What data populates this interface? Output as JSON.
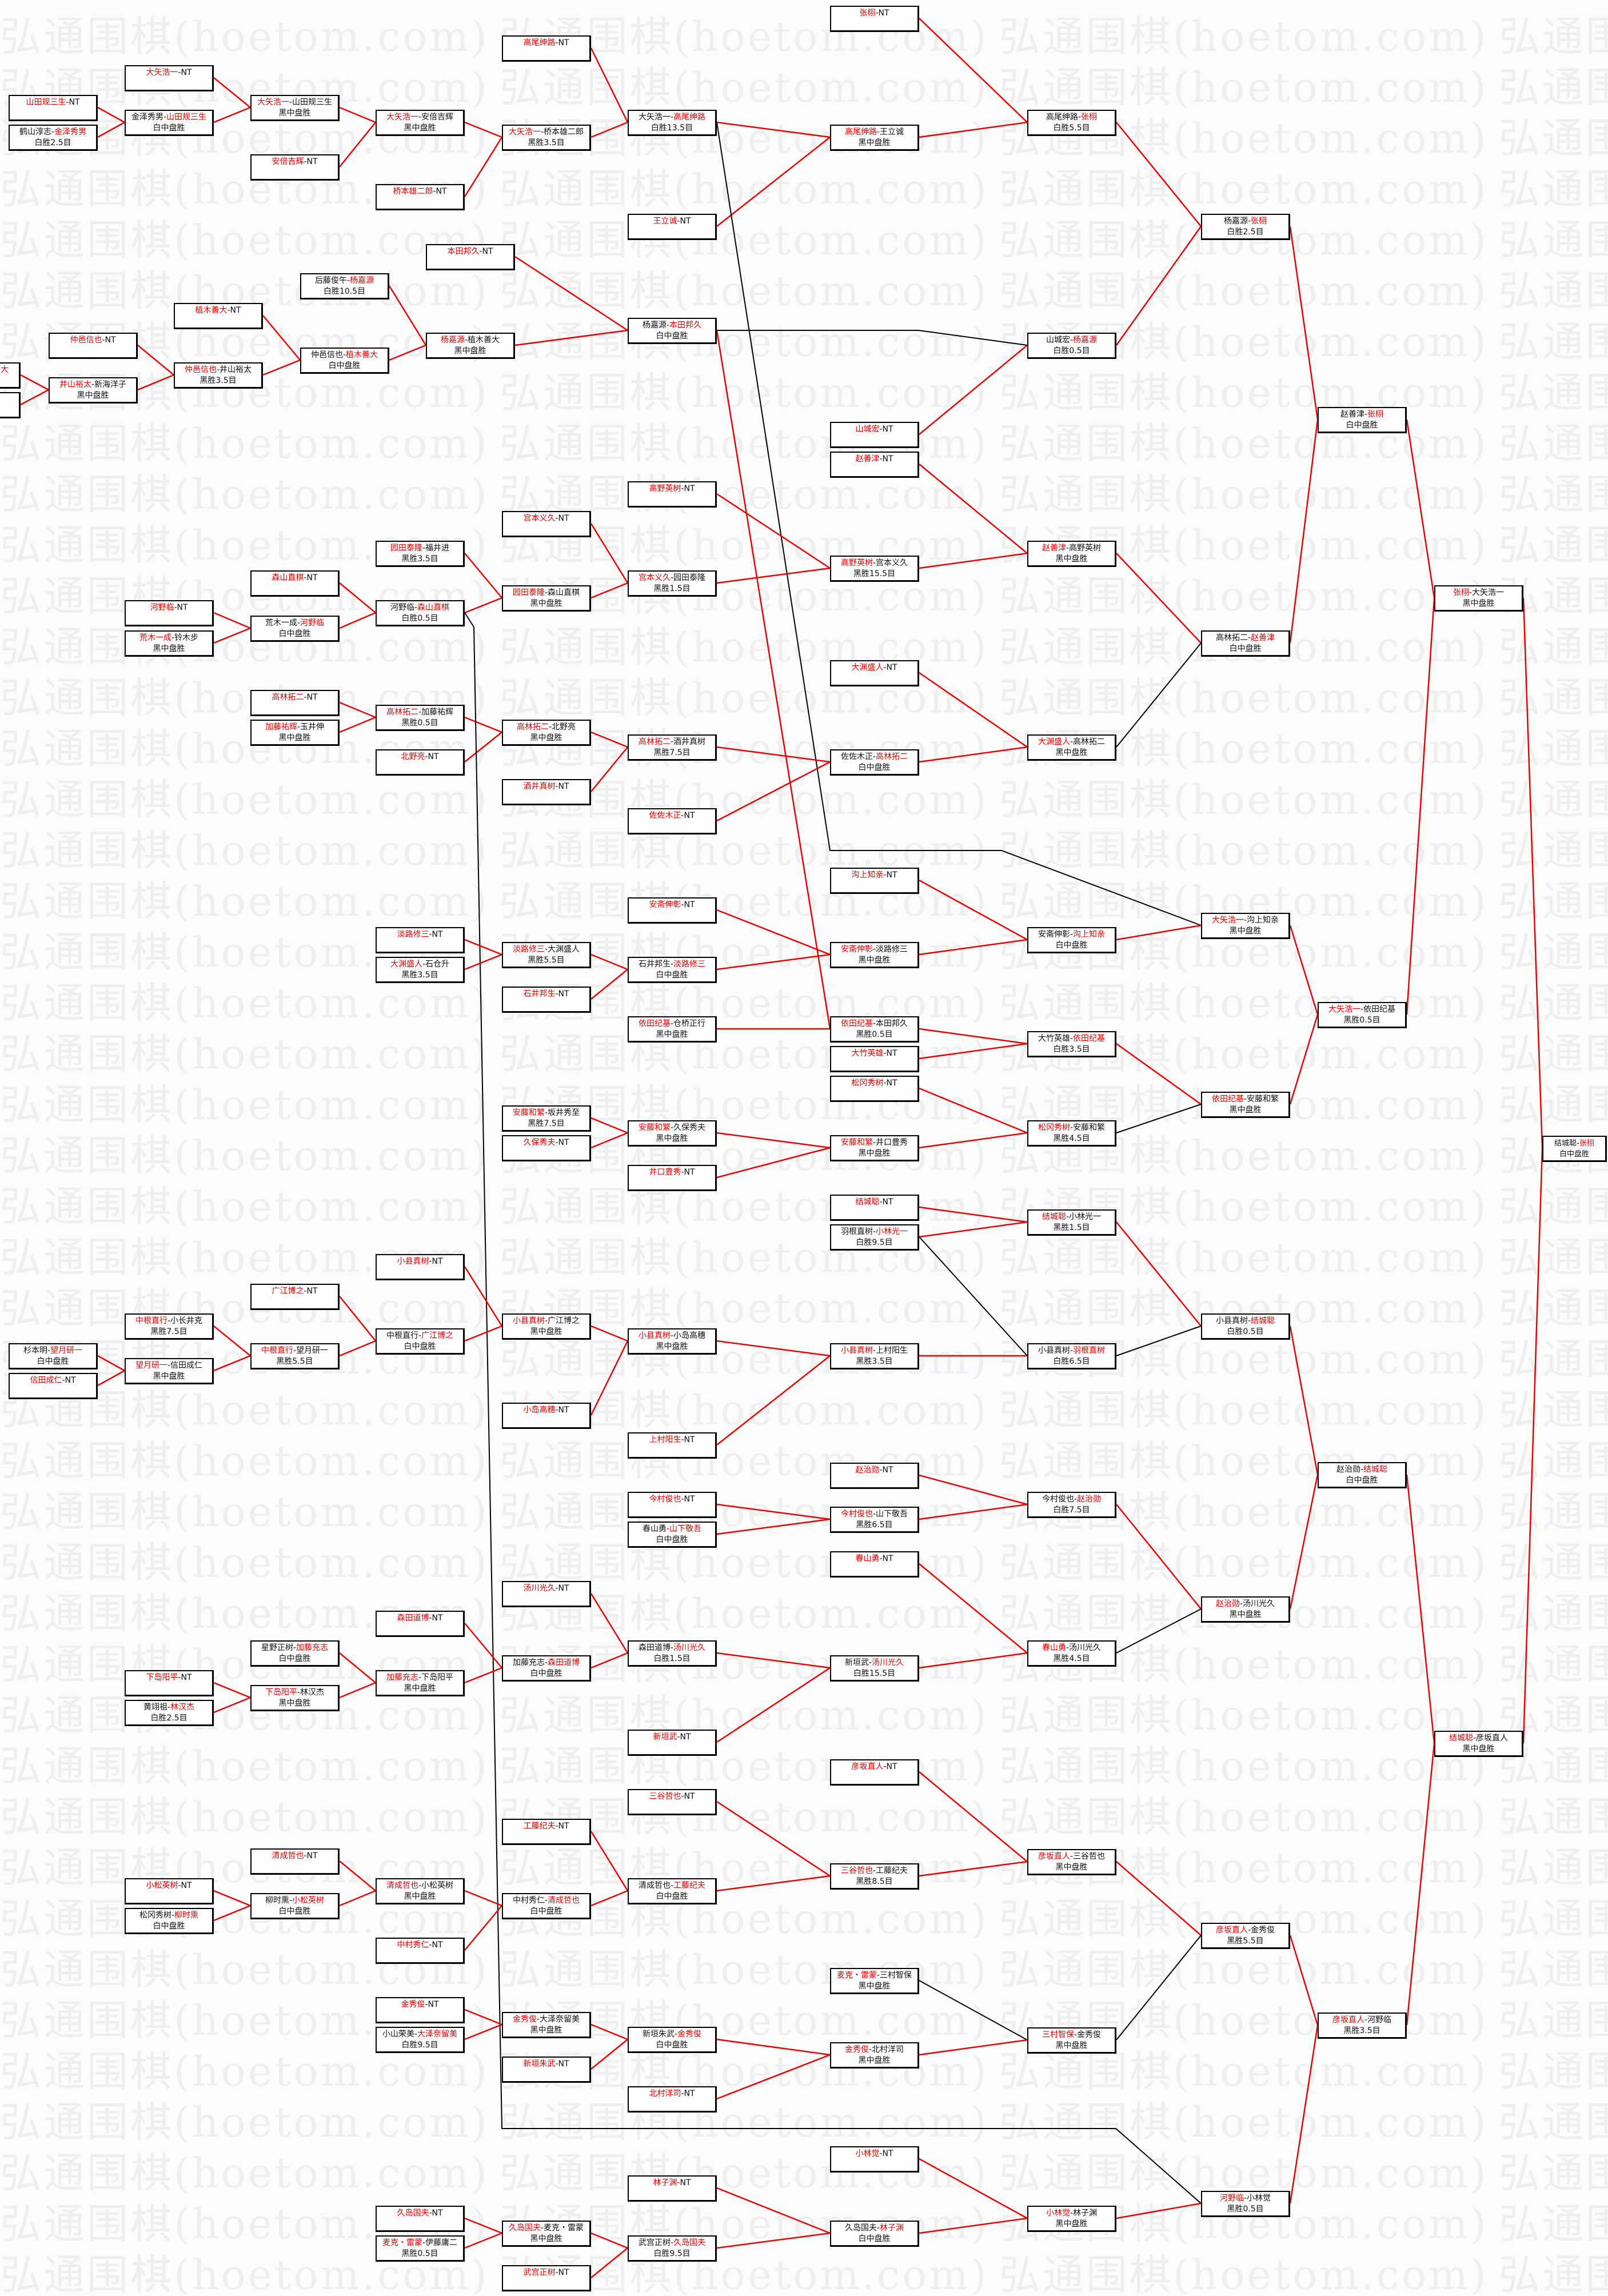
{
  "watermark": "弘通围棋(hoetom.com)",
  "separator": "-",
  "colors": {
    "winner_text": "#ee0000",
    "winner_line": "#ee0000",
    "loser_line": "#000000",
    "box_border": "#000000"
  },
  "boxes": [
    {
      "a": "山田规三生",
      "b": "NT",
      "red": "a"
    },
    {
      "a": "鹤山淳志",
      "b": "金泽秀男",
      "red": "b",
      "result": "白胜2.5目"
    },
    {
      "a": "大矢浩一",
      "b": "NT",
      "red": "a"
    },
    {
      "a": "金泽秀男",
      "b": "山田规三生",
      "red": "b",
      "result": "白中盘胜"
    },
    {
      "a": "大矢浩一",
      "b": "山田规三生",
      "red": "a",
      "result": "黑中盘胜"
    },
    {
      "a": "安倍吉辉",
      "b": "NT",
      "red": "a"
    },
    {
      "a": "大矢浩一",
      "b": "安倍吉辉",
      "red": "a",
      "result": "黑中盘胜"
    },
    {
      "a": "桥本雄二郎",
      "b": "NT",
      "red": "a"
    },
    {
      "a": "高尾绅路",
      "b": "NT",
      "red": "a"
    },
    {
      "a": "大矢浩一",
      "b": "桥本雄二郎",
      "red": "a",
      "result": "黑胜3.5目"
    },
    {
      "a": "大矢浩一",
      "b": "高尾绅路",
      "red": "b",
      "result": "白胜13.5目"
    },
    {
      "a": "王立诚",
      "b": "NT",
      "red": "a"
    },
    {
      "a": "张栩",
      "b": "NT",
      "red": "a"
    },
    {
      "a": "高尾绅路",
      "b": "王立诚",
      "red": "a",
      "result": "黑中盘胜"
    },
    {
      "a": "高尾绅路",
      "b": "张栩",
      "red": "b",
      "result": "白胜5.5目"
    },
    {
      "a": "杨嘉源",
      "b": "张栩",
      "red": "b",
      "result": "白胜2.5目"
    },
    {
      "a": "大",
      "red": "a"
    },
    {},
    {
      "a": "仲邑信也",
      "b": "NT",
      "red": "a"
    },
    {
      "a": "井山裕太",
      "b": "新海洋子",
      "red": "a",
      "result": "黑中盘胜"
    },
    {
      "a": "植木善大",
      "b": "NT",
      "red": "a"
    },
    {
      "a": "仲邑信也",
      "b": "井山裕太",
      "red": "a",
      "result": "黑胜3.5目"
    },
    {
      "a": "后藤俊午",
      "b": "杨嘉源",
      "red": "b",
      "result": "白胜10.5目"
    },
    {
      "a": "仲邑信也",
      "b": "植木善大",
      "red": "b",
      "result": "白中盘胜"
    },
    {
      "a": "本田邦久",
      "b": "NT",
      "red": "a"
    },
    {
      "a": "杨嘉源",
      "b": "植木善大",
      "red": "a",
      "result": "黑中盘胜"
    },
    {
      "a": "杨嘉源",
      "b": "本田邦久",
      "red": "b",
      "result": "白中盘胜"
    },
    {
      "a": "山城宏",
      "b": "NT",
      "red": "a"
    },
    {
      "a": "赵善津",
      "b": "NT",
      "red": "a"
    },
    {
      "a": "山城宏",
      "b": "杨嘉源",
      "red": "b",
      "result": "白胜0.5目"
    },
    {
      "a": "赵善津",
      "b": "张栩",
      "red": "b",
      "result": "白中盘胜"
    },
    {
      "a": "河野临",
      "b": "NT",
      "red": "a"
    },
    {
      "a": "荒木一成",
      "b": "铃木步",
      "red": "a",
      "result": "黑中盘胜"
    },
    {
      "a": "森山直棋",
      "b": "NT",
      "red": "a"
    },
    {
      "a": "荒木一成",
      "b": "河野临",
      "red": "b",
      "result": "白中盘胜"
    },
    {
      "a": "园田泰隆",
      "b": "福井进",
      "red": "a",
      "result": "黑胜3.5目"
    },
    {
      "a": "河野临",
      "b": "森山直棋",
      "red": "b",
      "result": "白胜0.5目"
    },
    {
      "a": "宫本义久",
      "b": "NT",
      "red": "a"
    },
    {
      "a": "园田泰隆",
      "b": "森山直棋",
      "red": "a",
      "result": "黑中盘胜"
    },
    {
      "a": "高野英树",
      "b": "NT",
      "red": "a"
    },
    {
      "a": "宫本义久",
      "b": "园田泰隆",
      "red": "a",
      "result": "黑胜1.5目"
    },
    {
      "a": "高野英树",
      "b": "宫本义久",
      "red": "a",
      "result": "黑胜15.5目"
    },
    {
      "a": "赵善津",
      "b": "高野英树",
      "red": "a",
      "result": "黑中盘胜"
    },
    {
      "a": "高林拓二",
      "b": "赵善津",
      "red": "b",
      "result": "白中盘胜"
    },
    {
      "a": "高林拓二",
      "b": "NT",
      "red": "a"
    },
    {
      "a": "加藤祐辉",
      "b": "玉井伸",
      "red": "a",
      "result": "黑中盘胜"
    },
    {
      "a": "高林拓二",
      "b": "加藤祐辉",
      "red": "a",
      "result": "黑胜0.5目"
    },
    {
      "a": "北野亮",
      "b": "NT",
      "red": "a"
    },
    {
      "a": "高林拓二",
      "b": "北野亮",
      "red": "a",
      "result": "黑中盘胜"
    },
    {
      "a": "酒井真树",
      "b": "NT",
      "red": "a"
    },
    {
      "a": "高林拓二",
      "b": "酒井真树",
      "red": "a",
      "result": "黑胜7.5目"
    },
    {
      "a": "佐佐木正",
      "b": "NT",
      "red": "a"
    },
    {
      "a": "大渊盛人",
      "b": "NT",
      "red": "a"
    },
    {
      "a": "佐佐木正",
      "b": "高林拓二",
      "red": "b",
      "result": "白中盘胜"
    },
    {
      "a": "大渊盛人",
      "b": "高林拓二",
      "red": "a",
      "result": "黑中盘胜"
    },
    {
      "a": "张栩",
      "b": "大矢浩一",
      "red": "a",
      "result": "黑中盘胜"
    },
    {
      "a": "淡路修三",
      "b": "NT",
      "red": "a"
    },
    {
      "a": "大渊盛人",
      "b": "石仓升",
      "red": "a",
      "result": "黑胜3.5目"
    },
    {
      "a": "淡路修三",
      "b": "大渊盛人",
      "red": "a",
      "result": "黑胜5.5目"
    },
    {
      "a": "石井邦生",
      "b": "NT",
      "red": "a"
    },
    {
      "a": "安斋伸彰",
      "b": "NT",
      "red": "a"
    },
    {
      "a": "石井邦生",
      "b": "淡路修三",
      "red": "b",
      "result": "白中盘胜"
    },
    {
      "a": "依田纪基",
      "b": "仓桥正行",
      "red": "a",
      "result": "黑中盘胜"
    },
    {
      "a": "沟上知亲",
      "b": "NT",
      "red": "a"
    },
    {
      "a": "安斋伸彰",
      "b": "淡路修三",
      "red": "a",
      "result": "黑中盘胜"
    },
    {
      "a": "依田纪基",
      "b": "本田邦久",
      "red": "a",
      "result": "黑胜0.5目"
    },
    {
      "a": "大竹英雄",
      "b": "NT",
      "red": "a"
    },
    {
      "a": "松冈秀树",
      "b": "NT",
      "red": "a"
    },
    {
      "a": "安斋伸彰",
      "b": "沟上知亲",
      "red": "b",
      "result": "白中盘胜"
    },
    {
      "a": "大竹英雄",
      "b": "依田纪基",
      "red": "b",
      "result": "白胜3.5目"
    },
    {
      "a": "大矢浩一",
      "b": "沟上知亲",
      "red": "a",
      "result": "黑中盘胜"
    },
    {
      "a": "安藤和繁",
      "b": "坂井秀至",
      "red": "a",
      "result": "黑胜7.5目"
    },
    {
      "a": "久保秀夫",
      "b": "NT",
      "red": "a"
    },
    {
      "a": "安藤和繁",
      "b": "久保秀夫",
      "red": "a",
      "result": "黑中盘胜"
    },
    {
      "a": "井口豊秀",
      "b": "NT",
      "red": "a"
    },
    {
      "a": "安藤和繁",
      "b": "井口豊秀",
      "red": "a",
      "result": "黑中盘胜"
    },
    {
      "a": "松冈秀树",
      "b": "安藤和繁",
      "red": "a",
      "result": "黑胜4.5目"
    },
    {
      "a": "依田纪基",
      "b": "安藤和繁",
      "red": "a",
      "result": "黑中盘胜"
    },
    {
      "a": "大矢浩一",
      "b": "依田纪基",
      "red": "a",
      "result": "黑胜0.5目"
    },
    {
      "a": "结城聪",
      "b": "NT",
      "red": "a"
    },
    {
      "a": "羽根直树",
      "b": "小林光一",
      "red": "b",
      "result": "白胜9.5目"
    },
    {
      "a": "结城聪",
      "b": "小林光一",
      "red": "a",
      "result": "黑胜1.5目"
    },
    {
      "a": "小县真树",
      "b": "NT",
      "red": "a"
    },
    {
      "a": "广江博之",
      "b": "NT",
      "red": "a"
    },
    {
      "a": "中根直行",
      "b": "小长井克",
      "red": "a",
      "result": "黑胜7.5目"
    },
    {
      "a": "杉本明",
      "b": "望月研一",
      "red": "b",
      "result": "白中盘胜"
    },
    {
      "a": "信田成仁",
      "b": "NT",
      "red": "a"
    },
    {
      "a": "望月研一",
      "b": "信田成仁",
      "red": "a",
      "result": "黑中盘胜"
    },
    {
      "a": "中根直行",
      "b": "望月研一",
      "red": "a",
      "result": "黑胜5.5目"
    },
    {
      "a": "中根直行",
      "b": "广江博之",
      "red": "b",
      "result": "白中盘胜"
    },
    {
      "a": "小县真树",
      "b": "广江博之",
      "red": "a",
      "result": "黑中盘胜"
    },
    {
      "a": "小岛高穗",
      "b": "NT",
      "red": "a"
    },
    {
      "a": "小县真树",
      "b": "小岛高穗",
      "red": "a",
      "result": "黑中盘胜"
    },
    {
      "a": "上村阳生",
      "b": "NT",
      "red": "a"
    },
    {
      "a": "小县真树",
      "b": "上村阳生",
      "red": "a",
      "result": "黑胜3.5目"
    },
    {
      "a": "小县真树",
      "b": "羽根直树",
      "red": "b",
      "result": "白胜6.5目"
    },
    {
      "a": "小县真树",
      "b": "结城聪",
      "red": "b",
      "result": "白胜0.5目"
    },
    {
      "a": "今村俊也",
      "b": "NT",
      "red": "a"
    },
    {
      "a": "春山勇",
      "b": "山下敬吾",
      "red": "b",
      "result": "白中盘胜"
    },
    {
      "a": "赵治勋",
      "b": "NT",
      "red": "a"
    },
    {
      "a": "今村俊也",
      "b": "山下敬吾",
      "red": "a",
      "result": "黑胜6.5目"
    },
    {
      "a": "春山勇",
      "b": "NT",
      "red": "a"
    },
    {
      "a": "今村俊也",
      "b": "赵治勋",
      "red": "b",
      "result": "白胜7.5目"
    },
    {
      "a": "汤川光久",
      "b": "NT",
      "red": "a"
    },
    {
      "a": "森田道博",
      "b": "NT",
      "red": "a"
    },
    {
      "a": "星野正树",
      "b": "加藤充志",
      "red": "b",
      "result": "白中盘胜"
    },
    {
      "a": "下岛阳平",
      "b": "NT",
      "red": "a"
    },
    {
      "a": "黄翊祖",
      "b": "林汉杰",
      "red": "b",
      "result": "白胜2.5目"
    },
    {
      "a": "下岛阳平",
      "b": "林汉杰",
      "red": "a",
      "result": "黑中盘胜"
    },
    {
      "a": "加藤充志",
      "b": "下岛阳平",
      "red": "a",
      "result": "黑中盘胜"
    },
    {
      "a": "加藤充志",
      "b": "森田道博",
      "red": "b",
      "result": "白中盘胜"
    },
    {
      "a": "森田道博",
      "b": "汤川光久",
      "red": "b",
      "result": "白胜1.5目"
    },
    {
      "a": "新垣武",
      "b": "NT",
      "red": "a"
    },
    {
      "a": "新垣武",
      "b": "汤川光久",
      "red": "b",
      "result": "白胜15.5目"
    },
    {
      "a": "春山勇",
      "b": "汤川光久",
      "red": "a",
      "result": "黑胜4.5目"
    },
    {
      "a": "赵治勋",
      "b": "汤川光久",
      "red": "a",
      "result": "黑中盘胜"
    },
    {
      "a": "赵治勋",
      "b": "结城聪",
      "red": "b",
      "result": "白中盘胜"
    },
    {
      "a": "彦坂直人",
      "b": "NT",
      "red": "a"
    },
    {
      "a": "三谷哲也",
      "b": "NT",
      "red": "a"
    },
    {
      "a": "工藤纪夫",
      "b": "NT",
      "red": "a"
    },
    {
      "a": "清成哲也",
      "b": "NT",
      "red": "a"
    },
    {
      "a": "小松英树",
      "b": "NT",
      "red": "a"
    },
    {
      "a": "松冈秀树",
      "b": "柳时熏",
      "red": "b",
      "result": "白中盘胜"
    },
    {
      "a": "柳时熏",
      "b": "小松英树",
      "red": "b",
      "result": "白中盘胜"
    },
    {
      "a": "清成哲也",
      "b": "小松英树",
      "red": "a",
      "result": "黑中盘胜"
    },
    {
      "a": "中村秀仁",
      "b": "NT",
      "red": "a"
    },
    {
      "a": "中村秀仁",
      "b": "清成哲也",
      "red": "b",
      "result": "白中盘胜"
    },
    {
      "a": "清成哲也",
      "b": "工藤纪夫",
      "red": "b",
      "result": "白中盘胜"
    },
    {
      "a": "三谷哲也",
      "b": "工藤纪夫",
      "red": "a",
      "result": "黑胜8.5目"
    },
    {
      "a": "彦坂直人",
      "b": "三谷哲也",
      "red": "a",
      "result": "黑中盘胜"
    },
    {
      "a": "金秀俊",
      "b": "NT",
      "red": "a"
    },
    {
      "a": "小山荣美",
      "b": "大泽奈留美",
      "red": "b",
      "result": "白胜9.5目"
    },
    {
      "a": "金秀俊",
      "b": "大泽奈留美",
      "red": "a",
      "result": "黑中盘胜"
    },
    {
      "a": "新垣朱武",
      "b": "NT",
      "red": "a"
    },
    {
      "a": "新垣朱武",
      "b": "金秀俊",
      "red": "b",
      "result": "白中盘胜"
    },
    {
      "a": "北村洋司",
      "b": "NT",
      "red": "a"
    },
    {
      "a": "麦克・雷蒙",
      "b": "三村智保",
      "red": "a",
      "result": "黑中盘胜"
    },
    {
      "a": "金秀俊",
      "b": "北村洋司",
      "red": "a",
      "result": "黑中盘胜"
    },
    {
      "a": "三村智保",
      "b": "金秀俊",
      "red": "a",
      "result": "黑中盘胜"
    },
    {
      "a": "彦坂直人",
      "b": "金秀俊",
      "red": "a",
      "result": "黑胜5.5目"
    },
    {
      "a": "久岛国夫",
      "b": "NT",
      "red": "a"
    },
    {
      "a": "麦克・雷蒙",
      "b": "伊藤庸二",
      "red": "a",
      "result": "黑胜0.5目"
    },
    {
      "a": "久岛国夫",
      "b": "麦克・雷蒙",
      "red": "a",
      "result": "黑中盘胜"
    },
    {
      "a": "武宫正树",
      "b": "NT",
      "red": "a"
    },
    {
      "a": "林子渊",
      "b": "NT",
      "red": "a"
    },
    {
      "a": "武宫正树",
      "b": "久岛国夫",
      "red": "b",
      "result": "白胜9.5目"
    },
    {
      "a": "小林觉",
      "b": "NT",
      "red": "a"
    },
    {
      "a": "久岛国夫",
      "b": "林子渊",
      "red": "b",
      "result": "白中盘胜"
    },
    {
      "a": "小林觉",
      "b": "林子渊",
      "red": "a",
      "result": "黑中盘胜"
    },
    {
      "a": "河野临",
      "b": "小林觉",
      "red": "a",
      "result": "黑胜0.5目"
    },
    {
      "a": "彦坂直人",
      "b": "河野临",
      "red": "a",
      "result": "黑胜3.5目"
    },
    {
      "a": "结城聪",
      "b": "彦坂直人",
      "red": "a",
      "result": "黑中盘胜"
    },
    {
      "a": "结城聪",
      "b": "张栩",
      "red": "b",
      "result": "白中盘胜"
    }
  ]
}
